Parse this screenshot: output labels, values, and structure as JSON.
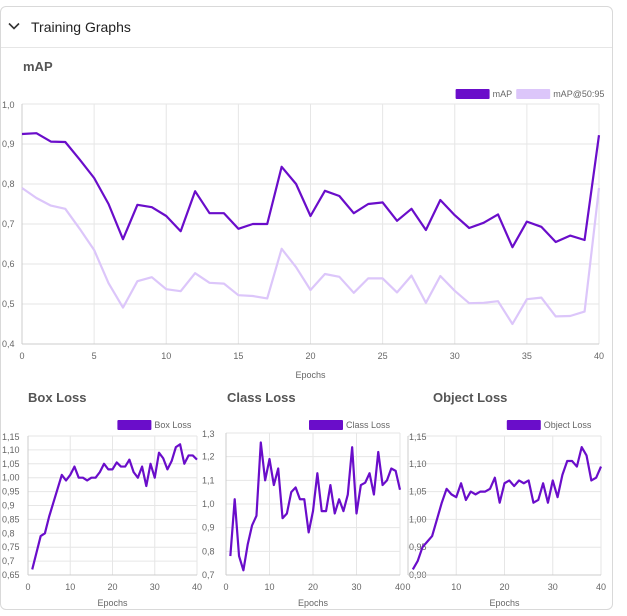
{
  "section": {
    "title": "Training Graphs"
  },
  "colors": {
    "map": "#6a0dca",
    "map5095": "#dcc6fa",
    "grid": "#e6e6e6",
    "axis": "#cccccc",
    "text": "#666666"
  },
  "chart_data": [
    {
      "id": "map",
      "type": "line",
      "title": "mAP",
      "xlabel": "Epochs",
      "xlim": [
        0,
        40
      ],
      "ylim": [
        0.4,
        1.0
      ],
      "xticks": [
        "0",
        "5",
        "10",
        "15",
        "20",
        "25",
        "30",
        "35",
        "40"
      ],
      "yticks": [
        "0,4",
        "0,5",
        "0,6",
        "0,7",
        "0,8",
        "0,9",
        "1,0"
      ],
      "legend_position": "top-right",
      "series": [
        {
          "name": "mAP",
          "values": [
            0.925,
            0.927,
            0.906,
            0.905,
            0.861,
            0.815,
            0.75,
            0.662,
            0.748,
            0.742,
            0.72,
            0.682,
            0.782,
            0.727,
            0.727,
            0.688,
            0.7,
            0.7,
            0.843,
            0.8,
            0.72,
            0.783,
            0.77,
            0.727,
            0.75,
            0.754,
            0.708,
            0.738,
            0.685,
            0.76,
            0.722,
            0.69,
            0.703,
            0.724,
            0.642,
            0.706,
            0.693,
            0.655,
            0.671,
            0.66,
            0.922
          ]
        },
        {
          "name": "mAP@50:95",
          "values": [
            0.79,
            0.765,
            0.746,
            0.738,
            0.688,
            0.635,
            0.552,
            0.491,
            0.557,
            0.567,
            0.537,
            0.532,
            0.577,
            0.553,
            0.551,
            0.522,
            0.52,
            0.514,
            0.638,
            0.592,
            0.535,
            0.575,
            0.568,
            0.528,
            0.564,
            0.564,
            0.529,
            0.571,
            0.503,
            0.57,
            0.533,
            0.502,
            0.503,
            0.507,
            0.45,
            0.512,
            0.516,
            0.469,
            0.47,
            0.481,
            0.79
          ]
        }
      ]
    },
    {
      "id": "box",
      "type": "line",
      "title": "Box Loss",
      "xlabel": "Epochs",
      "xlim": [
        0,
        40
      ],
      "ylim": [
        0.65,
        1.15
      ],
      "xticks": [
        "0",
        "10",
        "20",
        "30",
        "40"
      ],
      "yticks": [
        "0,65",
        "0,7",
        "0,75",
        "0,8",
        "0,85",
        "0,9",
        "0,95",
        "1,00",
        "1,05",
        "1,10",
        "1,15"
      ],
      "legend_position": "top-right",
      "series": [
        {
          "name": "Box Loss",
          "values": [
            0.67,
            0.73,
            0.79,
            0.8,
            0.86,
            0.91,
            0.96,
            1.01,
            0.99,
            1.01,
            1.04,
            1.0,
            1.0,
            0.99,
            1.0,
            1.0,
            1.02,
            1.05,
            1.03,
            1.03,
            1.055,
            1.04,
            1.04,
            1.065,
            1.02,
            1.0,
            1.04,
            0.97,
            1.05,
            1.0,
            1.09,
            1.07,
            1.03,
            1.06,
            1.11,
            1.12,
            1.05,
            1.08,
            1.08,
            1.065
          ]
        }
      ]
    },
    {
      "id": "class",
      "type": "line",
      "title": "Class Loss",
      "xlabel": "Epochs",
      "xlim": [
        0,
        40
      ],
      "ylim": [
        0.7,
        1.3
      ],
      "xticks": [
        "0",
        "10",
        "20",
        "30",
        "40"
      ],
      "yticks": [
        "0,7",
        "0,8",
        "0,9",
        "1,0",
        "1,1",
        "1,2",
        "1,3"
      ],
      "legend_position": "top-right",
      "series": [
        {
          "name": "Class Loss",
          "values": [
            0.78,
            1.02,
            0.78,
            0.72,
            0.83,
            0.91,
            0.95,
            1.26,
            1.1,
            1.19,
            1.08,
            1.15,
            0.94,
            0.96,
            1.05,
            1.07,
            1.02,
            1.02,
            0.88,
            0.97,
            1.13,
            0.97,
            0.97,
            1.08,
            0.96,
            1.02,
            0.97,
            1.04,
            1.24,
            0.96,
            1.08,
            1.09,
            1.13,
            1.04,
            1.22,
            1.08,
            1.1,
            1.15,
            1.14,
            1.06
          ]
        }
      ]
    },
    {
      "id": "object",
      "type": "line",
      "title": "Object Loss",
      "xlabel": "Epochs",
      "xlim": [
        0,
        40
      ],
      "ylim": [
        0.9,
        1.15
      ],
      "xticks": [
        "0",
        "10",
        "20",
        "30",
        "40"
      ],
      "yticks": [
        "0,90",
        "0,95",
        "1,00",
        "1,05",
        "1,10",
        "1,15"
      ],
      "legend_position": "top-right",
      "series": [
        {
          "name": "Object Loss",
          "values": [
            0.91,
            0.925,
            0.95,
            0.96,
            0.97,
            1.0,
            1.03,
            1.055,
            1.045,
            1.04,
            1.065,
            1.035,
            1.05,
            1.045,
            1.05,
            1.05,
            1.055,
            1.075,
            1.03,
            1.065,
            1.07,
            1.06,
            1.07,
            1.065,
            1.07,
            1.03,
            1.035,
            1.065,
            1.03,
            1.07,
            1.04,
            1.08,
            1.105,
            1.105,
            1.095,
            1.13,
            1.115,
            1.07,
            1.075,
            1.095
          ]
        }
      ]
    }
  ]
}
